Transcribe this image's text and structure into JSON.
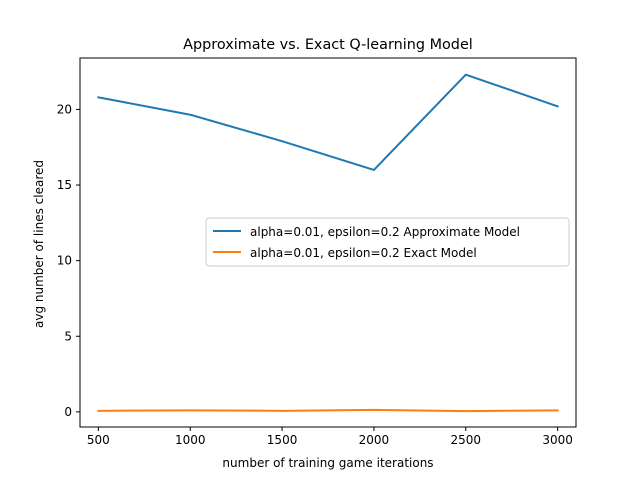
{
  "chart_data": {
    "type": "line",
    "title": "Approximate vs. Exact Q-learning Model",
    "xlabel": "number of training game iterations",
    "ylabel": "avg number of lines cleared",
    "x": [
      500,
      1000,
      1500,
      2000,
      2500,
      3000
    ],
    "xlim": [
      400,
      3100
    ],
    "ylim": [
      -1.0,
      23.4
    ],
    "xticks": [
      500,
      1000,
      1500,
      2000,
      2500,
      3000
    ],
    "yticks": [
      0,
      5,
      10,
      15,
      20
    ],
    "grid": false,
    "legend_position": "center-right",
    "series": [
      {
        "name": "alpha=0.01, epsilon=0.2 Approximate Model",
        "color": "#1f77b4",
        "values": [
          20.8,
          19.65,
          17.9,
          16.0,
          22.3,
          20.2
        ]
      },
      {
        "name": "alpha=0.01, epsilon=0.2 Exact Model",
        "color": "#ff7f0e",
        "values": [
          0.07,
          0.1,
          0.07,
          0.13,
          0.05,
          0.1
        ]
      }
    ]
  }
}
